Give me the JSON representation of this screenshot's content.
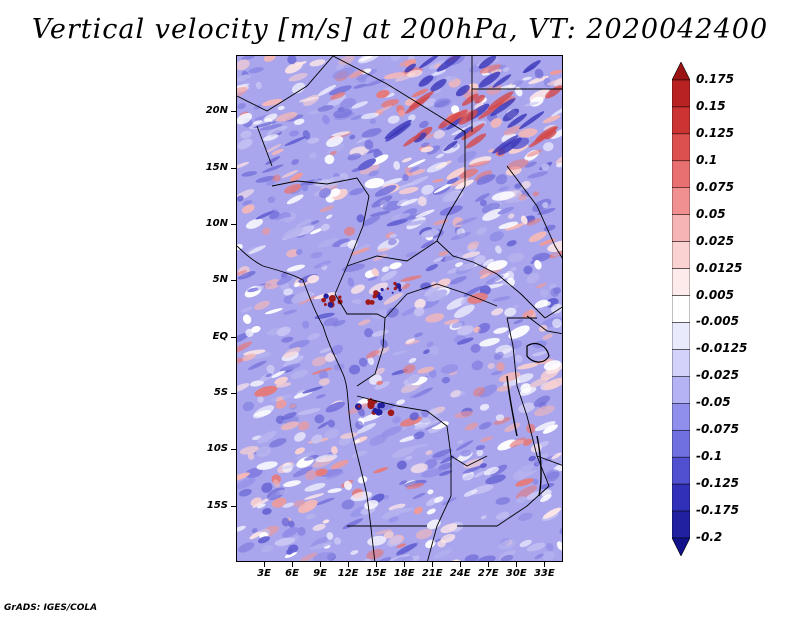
{
  "title": "Vertical velocity [m/s] at 200hPa, VT: 2020042400",
  "credit": "GrADS: IGES/COLA",
  "map": {
    "variable": "Vertical velocity",
    "units": "m/s",
    "level": "200hPa",
    "valid_time": "2020042400",
    "lat_labels": [
      "20N",
      "15N",
      "10N",
      "5N",
      "EQ",
      "5S",
      "10S",
      "15S"
    ],
    "lat_values": [
      20,
      15,
      10,
      5,
      0,
      -5,
      -10,
      -15
    ],
    "lon_labels": [
      "3E",
      "6E",
      "9E",
      "12E",
      "15E",
      "18E",
      "21E",
      "24E",
      "27E",
      "30E",
      "33E"
    ],
    "lon_values": [
      3,
      6,
      9,
      12,
      15,
      18,
      21,
      24,
      27,
      30,
      33
    ],
    "lat_range": [
      -20,
      25
    ],
    "lon_range": [
      0,
      35
    ]
  },
  "legend": {
    "labels": [
      "0.175",
      "0.15",
      "0.125",
      "0.1",
      "0.075",
      "0.05",
      "0.025",
      "0.0125",
      "0.005",
      "-0.005",
      "-0.0125",
      "-0.025",
      "-0.05",
      "-0.075",
      "-0.1",
      "-0.125",
      "-0.175",
      "-0.2"
    ],
    "colors": [
      "#a01818",
      "#b82222",
      "#cc3333",
      "#dd5050",
      "#e87070",
      "#f09090",
      "#f6b4b4",
      "#fad2d2",
      "#fdeaea",
      "#ffffff",
      "#eaeafd",
      "#d2d2fa",
      "#b4b4f4",
      "#9090ec",
      "#7070e0",
      "#5050d0",
      "#3030b8",
      "#2020a0",
      "#16168a"
    ],
    "top_color": "#9a1414",
    "bottom_color": "#12128a"
  }
}
